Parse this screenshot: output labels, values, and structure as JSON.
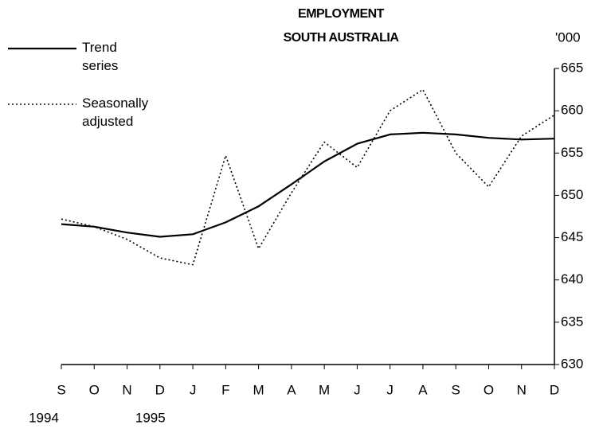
{
  "chart_data": {
    "type": "line",
    "title": "EMPLOYMENT",
    "subtitle": "SOUTH AUSTRALIA",
    "y_unit": "'000",
    "categories": [
      "S",
      "O",
      "N",
      "D",
      "J",
      "F",
      "M",
      "A",
      "M",
      "J",
      "J",
      "A",
      "S",
      "O",
      "N",
      "D"
    ],
    "x_groups": [
      {
        "label": "1994",
        "start": 0
      },
      {
        "label": "1995",
        "start": 3
      }
    ],
    "series": [
      {
        "name": "Trend series",
        "color": "#000000",
        "style": "solid",
        "values": [
          646.6,
          646.3,
          645.6,
          645.1,
          645.4,
          646.8,
          648.7,
          651.3,
          654.0,
          656.1,
          657.2,
          657.4,
          657.2,
          656.8,
          656.6,
          656.7
        ]
      },
      {
        "name": "Seasonally adjusted",
        "color": "#000000",
        "style": "dotted",
        "values": [
          647.2,
          646.3,
          644.8,
          642.6,
          641.8,
          654.7,
          643.7,
          650.3,
          656.3,
          653.3,
          660.0,
          662.5,
          655.0,
          651.0,
          657.0,
          659.5
        ]
      }
    ],
    "ylim": [
      630,
      665
    ],
    "yticks": [
      630,
      635,
      640,
      645,
      650,
      655,
      660,
      665
    ],
    "y_axis_side": "right",
    "grid": false
  }
}
